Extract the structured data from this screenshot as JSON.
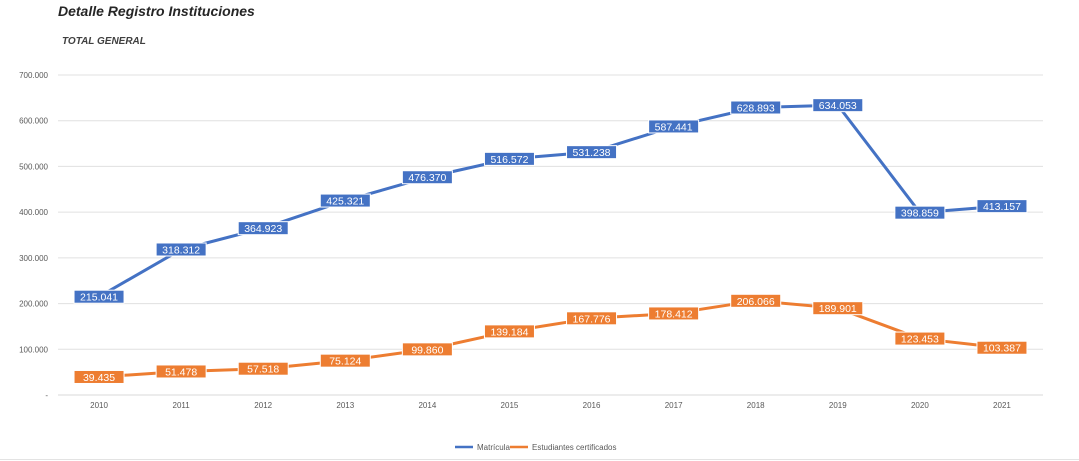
{
  "header": {
    "title": "Detalle Registro Instituciones",
    "subtitle": "TOTAL GENERAL"
  },
  "colors": {
    "matricula": "#4472c4",
    "certificados": "#ed7d31",
    "grid": "#e0e0e0",
    "axis_text": "#595959"
  },
  "chart_data": {
    "type": "line",
    "title": "Detalle Registro Instituciones",
    "subtitle": "TOTAL GENERAL",
    "categories": [
      "2010",
      "2011",
      "2012",
      "2013",
      "2014",
      "2015",
      "2016",
      "2017",
      "2018",
      "2019",
      "2020",
      "2021"
    ],
    "series": [
      {
        "name": "Matrícula",
        "color": "#4472c4",
        "values": [
          215041,
          318312,
          364923,
          425321,
          476370,
          516572,
          531238,
          587441,
          628893,
          634053,
          398859,
          413157
        ],
        "labels": [
          "215.041",
          "318.312",
          "364.923",
          "425.321",
          "476.370",
          "516.572",
          "531.238",
          "587.441",
          "628.893",
          "634.053",
          "398.859",
          "413.157"
        ]
      },
      {
        "name": "Estudiantes certificados",
        "color": "#ed7d31",
        "values": [
          39435,
          51478,
          57518,
          75124,
          99860,
          139184,
          167776,
          178412,
          206066,
          189901,
          123453,
          103387
        ],
        "labels": [
          "39.435",
          "51.478",
          "57.518",
          "75.124",
          "99.860",
          "139.184",
          "167.776",
          "178.412",
          "206.066",
          "189.901",
          "123.453",
          "103.387"
        ]
      }
    ],
    "ylim": [
      0,
      700000
    ],
    "yticks": [
      0,
      100000,
      200000,
      300000,
      400000,
      500000,
      600000,
      700000
    ],
    "ytick_labels": [
      "-",
      "100.000",
      "200.000",
      "300.000",
      "400.000",
      "500.000",
      "600.000",
      "700.000"
    ],
    "grid": true,
    "legend_position": "bottom"
  }
}
